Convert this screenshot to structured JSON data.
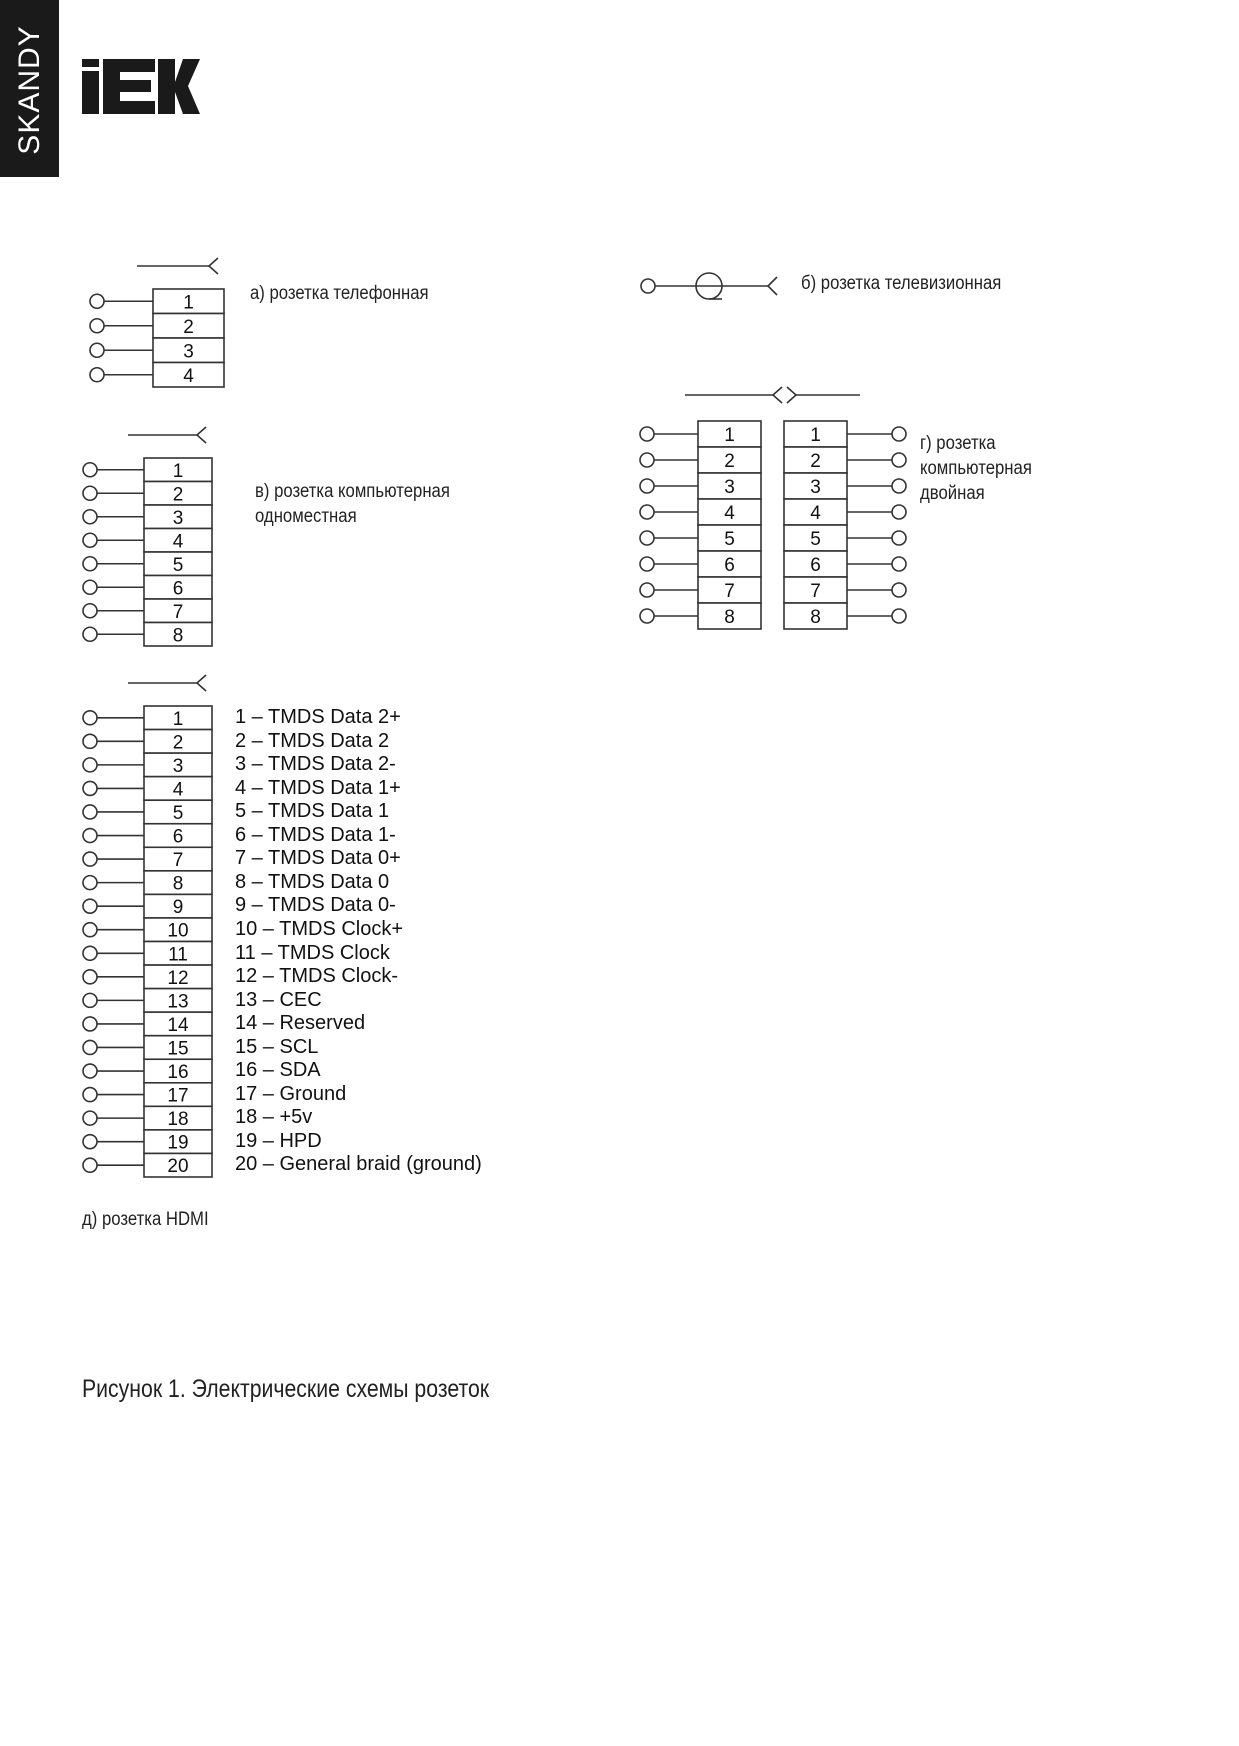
{
  "brand": {
    "series": "SKANDY",
    "logo": "IEK"
  },
  "diagrams": {
    "phone": {
      "label": "а) розетка телефонная",
      "pins": [
        "1",
        "2",
        "3",
        "4"
      ]
    },
    "tv": {
      "label": "б) розетка телевизионная"
    },
    "computer_single": {
      "label_line1": "в) розетка компьютерная",
      "label_line2": "одноместная",
      "pins": [
        "1",
        "2",
        "3",
        "4",
        "5",
        "6",
        "7",
        "8"
      ]
    },
    "computer_double": {
      "label_line1": "г) розетка",
      "label_line2": "компьютерная",
      "label_line3": "двойная",
      "pins": [
        "1",
        "2",
        "3",
        "4",
        "5",
        "6",
        "7",
        "8"
      ]
    },
    "hdmi": {
      "label": "д) розетка HDMI",
      "pins": [
        "1",
        "2",
        "3",
        "4",
        "5",
        "6",
        "7",
        "8",
        "9",
        "10",
        "11",
        "12",
        "13",
        "14",
        "15",
        "16",
        "17",
        "18",
        "19",
        "20"
      ],
      "legend": [
        "1 – TMDS Data 2+",
        "2 – TMDS Data 2",
        "3 – TMDS Data 2-",
        "4 – TMDS Data 1+",
        "5 – TMDS Data 1",
        "6 – TMDS Data 1-",
        "7 – TMDS Data 0+",
        "8 – TMDS Data 0",
        "9 – TMDS Data 0-",
        "10 – TMDS Clock+",
        "11 – TMDS Clock",
        "12 – TMDS Clock-",
        "13 – CEC",
        "14 – Reserved",
        "15 – SCL",
        "16 – SDA",
        "17 – Ground",
        "18 – +5v",
        "19 – HPD",
        "20 – General braid (ground)"
      ]
    }
  },
  "caption": "Рисунок 1. Электрические схемы розеток"
}
